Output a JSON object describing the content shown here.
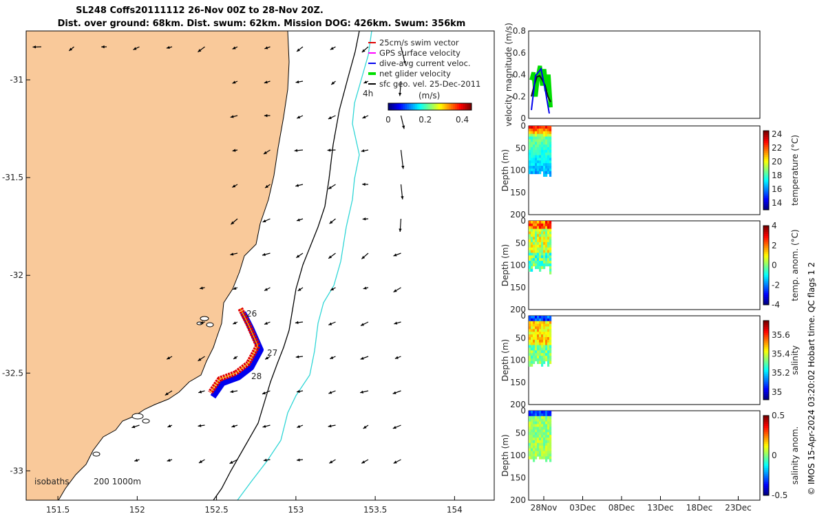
{
  "title_line1": "SL248 Coffs20111112 26-Nov 00Z to 28-Nov 20Z.",
  "title_line2": "Dist. over ground: 68km. Dist. swum: 62km. Mission DOG: 426km. Swum: 356km",
  "credit": "© IMOS 15-Apr-2024 03:20:02 Hobart time. QC flags 1  2",
  "colors": {
    "land": "#f9c99a",
    "coast": "#000000",
    "isobath_200": "#000000",
    "isobath_1000": "#2fd6d6",
    "swim": "#e00000",
    "gps": "#ff00ff",
    "dive": "#0000ee",
    "net": "#00dd00",
    "sfc": "#000000"
  },
  "chart_data": [
    {
      "type": "map",
      "xlim": [
        151.3,
        154.25
      ],
      "ylim": [
        -33.15,
        -30.75
      ],
      "xticks": [
        "151.5",
        "152",
        "152.5",
        "153",
        "153.5",
        "154"
      ],
      "yticks": [
        "-31",
        "-31.5",
        "-32",
        "-32.5",
        "-33"
      ],
      "legend": [
        "25cm/s swim vector",
        "GPS surface velocity",
        "dive-avg current veloc.",
        "net glider velocity",
        "sfc geo. vel. 25-Dec-2011"
      ],
      "colorbar": {
        "label": "(m/s)",
        "ticks": [
          "0",
          "0.2",
          "0.4"
        ],
        "range": [
          0,
          0.45
        ]
      },
      "annotations": {
        "day_labels": [
          "26",
          "27",
          "28"
        ],
        "time_label": "4h",
        "isobaths_label": "isobaths",
        "isobath_values": "200  1000m"
      },
      "glider_track": [
        {
          "lon": 152.65,
          "lat": -32.17
        },
        {
          "lon": 152.7,
          "lat": -32.25
        },
        {
          "lon": 152.76,
          "lat": -32.36
        },
        {
          "lon": 152.7,
          "lat": -32.45
        },
        {
          "lon": 152.62,
          "lat": -32.5
        },
        {
          "lon": 152.52,
          "lat": -32.53
        },
        {
          "lon": 152.46,
          "lat": -32.6
        }
      ]
    },
    {
      "type": "line",
      "ylabel": "velocity magnitude (m/s)",
      "ylim": [
        0,
        0.8
      ],
      "yticks": [
        "0",
        "0.2",
        "0.4",
        "0.6",
        "0.8"
      ],
      "series": [
        {
          "color": "green",
          "values_approx": [
            0.35,
            0.42,
            0.2,
            0.38,
            0.48,
            0.3,
            0.45,
            0.25,
            0.4,
            0.1
          ]
        },
        {
          "color": "black",
          "values_approx": [
            0.2,
            0.3,
            0.38,
            0.39,
            0.35,
            0.3,
            0.2,
            0.15
          ]
        }
      ]
    },
    {
      "type": "heatmap",
      "ylabel": "Depth (m)",
      "ylim": [
        200,
        0
      ],
      "yticks": [
        "0",
        "50",
        "100",
        "150",
        "200"
      ],
      "colorbar_label": "temperature (°C)",
      "colorbar_ticks": [
        "14",
        "16",
        "18",
        "20",
        "22",
        "24"
      ]
    },
    {
      "type": "heatmap",
      "ylabel": "Depth (m)",
      "ylim": [
        200,
        0
      ],
      "yticks": [
        "0",
        "50",
        "100",
        "150",
        "200"
      ],
      "colorbar_label": "temp. anom. (°C)",
      "colorbar_ticks": [
        "-4",
        "-2",
        "0",
        "2",
        "4"
      ]
    },
    {
      "type": "heatmap",
      "ylabel": "Depth (m)",
      "ylim": [
        200,
        0
      ],
      "yticks": [
        "0",
        "50",
        "100",
        "150",
        "200"
      ],
      "colorbar_label": "salinity",
      "colorbar_ticks": [
        "35",
        "35.2",
        "35.4",
        "35.6"
      ]
    },
    {
      "type": "heatmap",
      "ylabel": "Depth (m)",
      "ylim": [
        200,
        0
      ],
      "yticks": [
        "0",
        "50",
        "100",
        "150",
        "200"
      ],
      "colorbar_label": "salinity anom.",
      "colorbar_ticks": [
        "-0.5",
        "0",
        "0.5"
      ],
      "xticks": [
        "28Nov",
        "03Dec",
        "08Dec",
        "13Dec",
        "18Dec",
        "23Dec"
      ]
    }
  ]
}
